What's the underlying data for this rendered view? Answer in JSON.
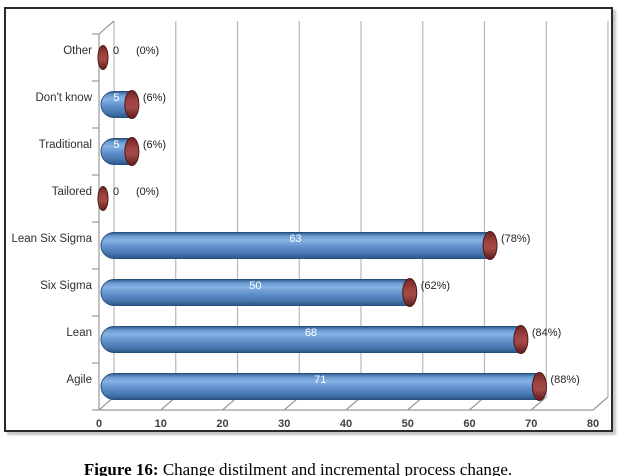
{
  "figure": {
    "caption_prefix": "Figure 16:",
    "caption_text": " Change distilment and incremental process change."
  },
  "chart_data": {
    "type": "bar",
    "orientation": "horizontal",
    "style": "3d-cylinder",
    "title": "",
    "xlabel": "",
    "ylabel": "",
    "categories": [
      "Other",
      "Don't know",
      "Traditional",
      "Tailored",
      "Lean Six Sigma",
      "Six Sigma",
      "Lean",
      "Agile"
    ],
    "values": [
      0,
      5,
      5,
      0,
      63,
      50,
      68,
      71
    ],
    "value_labels": [
      "0",
      "5",
      "5",
      "0",
      "63",
      "50",
      "68",
      "71"
    ],
    "percent_labels": [
      "(0%)",
      "(6%)",
      "(6%)",
      "(0%)",
      "(78%)",
      "(62%)",
      "(84%)",
      "(88%)"
    ],
    "x_ticks": [
      0,
      10,
      20,
      30,
      40,
      50,
      60,
      70,
      80
    ],
    "xlim": [
      0,
      80
    ],
    "grid": true,
    "legend": false,
    "colors": {
      "bar_fill": "#4f81bd",
      "bar_edge": "#28507e",
      "cap_fill": "#953735",
      "cap_edge": "#4f1715",
      "gridline": "#b8b8b8",
      "axis_line": "#9a9a9a",
      "inside_label": "#ffffff",
      "outside_label": "#1f1f1f"
    }
  }
}
